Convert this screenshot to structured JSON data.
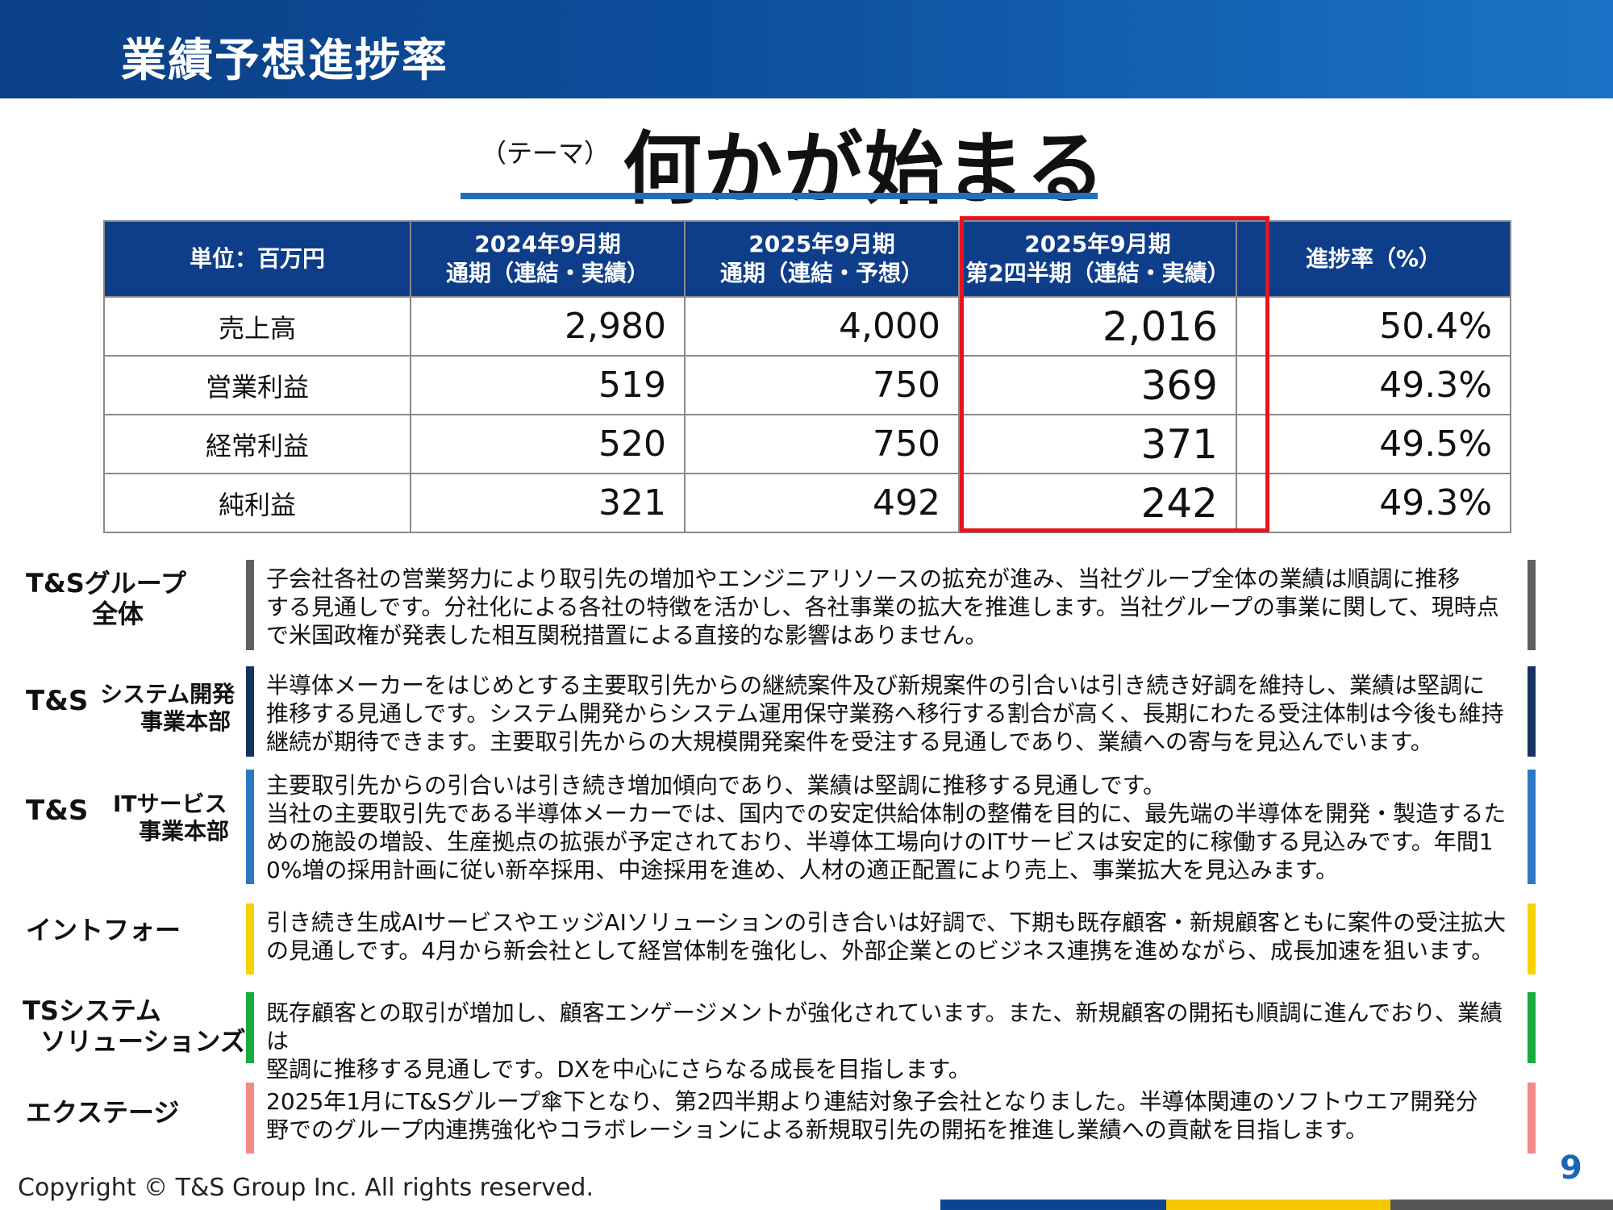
{
  "header": {
    "title": "業績予想進捗率"
  },
  "theme": {
    "label": "（テーマ）",
    "title": "何かが始まる"
  },
  "table": {
    "headers": [
      [
        "単位：百万円"
      ],
      [
        "2024年9月期",
        "通期（連結・実績）"
      ],
      [
        "2025年9月期",
        "通期（連結・予想）"
      ],
      [
        "2025年9月期",
        "第2四半期（連結・実績）"
      ],
      [
        "進捗率（%）"
      ]
    ],
    "rows": [
      {
        "label": "売上高",
        "fy2024": "2,980",
        "fy2025_forecast": "4,000",
        "q2_2025": "2,016",
        "progress": "50.4%"
      },
      {
        "label": "営業利益",
        "fy2024": "519",
        "fy2025_forecast": "750",
        "q2_2025": "369",
        "progress": "49.3%"
      },
      {
        "label": "経常利益",
        "fy2024": "520",
        "fy2025_forecast": "750",
        "q2_2025": "371",
        "progress": "49.5%"
      },
      {
        "label": "純利益",
        "fy2024": "321",
        "fy2025_forecast": "492",
        "q2_2025": "242",
        "progress": "49.3%"
      }
    ]
  },
  "segments": [
    {
      "name_lines": [
        "T&Sグループ",
        "全体"
      ],
      "text": "子会社各社の営業努力により取引先の増加やエンジニアリソースの拡充が進み、当社グループ全体の業績は順調に推移\nする見通しです。分社化による各社の特徴を活かし、各社事業の拡大を推進します。当社グループの事業に関して、現時点\nで米国政権が発表した相互関税措置による直接的な影響はありません。",
      "color": "#606060"
    },
    {
      "name_prefix": "T&S",
      "name_lines": [
        "システム開発",
        "事業本部"
      ],
      "text": "半導体メーカーをはじめとする主要取引先からの継続案件及び新規案件の引合いは引き続き好調を維持し、業績は堅調に\n推移する見通しです。システム開発からシステム運用保守業務へ移行する割合が高く、長期にわたる受注体制は今後も維持\n継続が期待できます。主要取引先からの大規模開発案件を受注する見通しであり、業績への寄与を見込んでいます。",
      "color": "#17345f"
    },
    {
      "name_prefix": "T&S",
      "name_lines": [
        "ITサービス",
        "事業本部"
      ],
      "text": "主要取引先からの引合いは引き続き増加傾向であり、業績は堅調に推移する見通しです。\n当社の主要取引先である半導体メーカーでは、国内での安定供給体制の整備を目的に、最先端の半導体を開発・製造するた\nめの施設の増設、生産拠点の拡張が予定されており、半導体工場向けのITサービスは安定的に稼働する見込みです。年間1\n0%増の採用計画に従い新卒採用、中途採用を進め、人材の適正配置により売上、事業拡大を見込みます。",
      "color": "#2e78c4"
    },
    {
      "name_lines": [
        "イントフォー"
      ],
      "text": "引き続き生成AIサービスやエッジAIソリューションの引き合いは好調で、下期も既存顧客・新規顧客ともに案件の受注拡大\nの見通しです。4月から新会社として経営体制を強化し、外部企業とのビジネス連携を進めながら、成長加速を狙います。",
      "color": "#f6d200"
    },
    {
      "name_lines": [
        "TSシステム",
        "ソリューションズ"
      ],
      "text": "既存顧客との取引が増加し、顧客エンゲージメントが強化されています。また、新規顧客の開拓も順調に進んでおり、業績は\n堅調に推移する見通しです。DXを中心にさらなる成長を目指します。",
      "color": "#1aab3c"
    },
    {
      "name_lines": [
        "エクステージ"
      ],
      "text": "2025年1月にT&Sグループ傘下となり、第2四半期より連結対象子会社となりました。半導体関連のソフトウエア開発分\n野でのグループ内連携強化やコラボレーションによる新規取引先の開拓を推進し業績への貢献を目指します。",
      "color": "#f38a8a"
    }
  ],
  "footer": {
    "copyright": "Copyright © T&S Group Inc. All rights reserved.",
    "page": "9",
    "strip_colors": [
      "#0d4592",
      "#f5c800",
      "#555555"
    ]
  }
}
